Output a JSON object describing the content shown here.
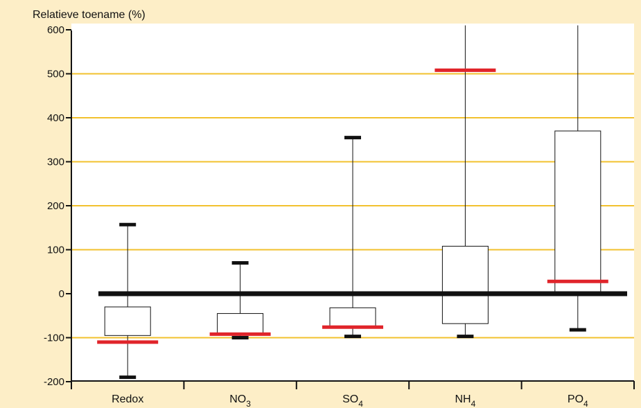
{
  "chart_data": {
    "type": "box",
    "ylabel": "Relatieve toename (%)",
    "ylim": [
      -200,
      600
    ],
    "yticks": [
      600,
      500,
      400,
      300,
      200,
      100,
      0,
      -100,
      -200
    ],
    "ytick_labels": [
      "600",
      "500",
      "400",
      "300",
      "200",
      "100",
      "0",
      "-100",
      "-200"
    ],
    "grid": true,
    "categories": [
      {
        "name": "Redox",
        "sub": ""
      },
      {
        "name": "NO",
        "sub": "3"
      },
      {
        "name": "SO",
        "sub": "4"
      },
      {
        "name": "NH",
        "sub": "4"
      },
      {
        "name": "PO",
        "sub": "4"
      }
    ],
    "boxes": [
      {
        "category": "Redox",
        "whisker_low": -190,
        "q1": -95,
        "q3": -30,
        "whisker_high": 157,
        "red_marker": -110,
        "low_cap": true,
        "high_cap": true
      },
      {
        "category": "NO3",
        "whisker_low": -100,
        "q1": -93,
        "q3": -45,
        "whisker_high": 70,
        "red_marker": -92,
        "low_cap": true,
        "high_cap": true
      },
      {
        "category": "SO4",
        "whisker_low": -97,
        "q1": -77,
        "q3": -32,
        "whisker_high": 355,
        "red_marker": -76,
        "low_cap": true,
        "high_cap": true
      },
      {
        "category": "NH4",
        "whisker_low": -97,
        "q1": -68,
        "q3": 108,
        "whisker_high": 610,
        "red_marker": 508,
        "low_cap": true,
        "high_cap": false
      },
      {
        "category": "PO4",
        "whisker_low": -82,
        "q1": 0,
        "q3": 370,
        "whisker_high": 610,
        "red_marker": 28,
        "low_cap": true,
        "high_cap": false
      }
    ],
    "zero_line": 0,
    "colors": {
      "background": "#fdeec7",
      "plot_area": "#ffffff",
      "grid": "#f2c12e",
      "red_marker": "#e0242a",
      "box_stroke": "#111111",
      "zero_line": "#111111"
    }
  }
}
